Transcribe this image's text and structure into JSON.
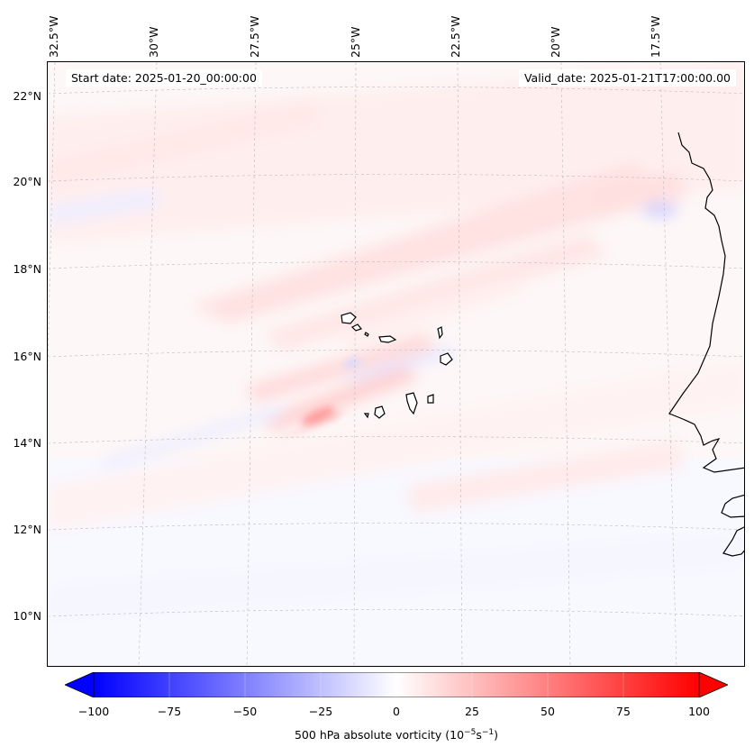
{
  "map": {
    "start_date": "Start date: 2025-01-20_00:00:00",
    "valid_date": "Valid_date: 2025-01-21T17:00:00.00",
    "lat_labels": [
      "22°N",
      "20°N",
      "18°N",
      "16°N",
      "14°N",
      "12°N",
      "10°N"
    ],
    "lon_labels": [
      "32.5°W",
      "30°W",
      "27.5°W",
      "25°W",
      "22.5°W",
      "20°W",
      "17.5°W"
    ],
    "field": "500 hPa absolute vorticity",
    "region": "Cabo Verde islands and West African coast"
  },
  "colorbar": {
    "label_prefix": "500 hPa absolute vorticity (10",
    "label_exp1": "−5",
    "label_mid": "s",
    "label_exp2": "−1",
    "label_suffix": ")",
    "ticks": [
      "−100",
      "−75",
      "−50",
      "−25",
      "0",
      "25",
      "50",
      "75",
      "100"
    ],
    "range": [
      -100,
      100
    ],
    "colormap": "bwr",
    "extend": "both",
    "colors": {
      "min": "#0000ff",
      "mid": "#ffffff",
      "max": "#ff0000"
    }
  }
}
